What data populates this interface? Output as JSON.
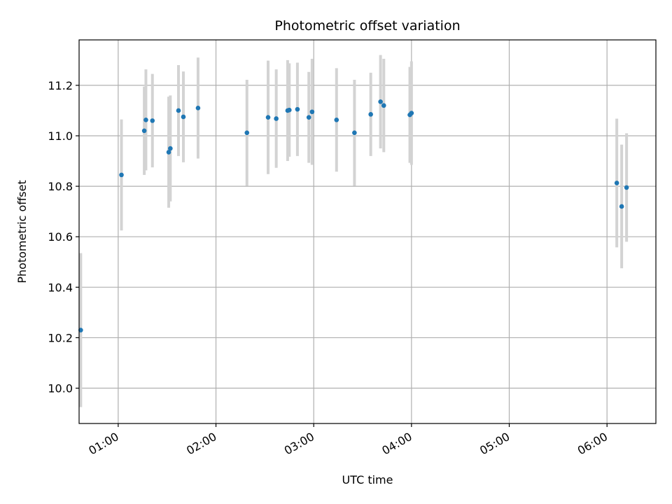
{
  "chart_data": {
    "type": "scatter",
    "title": "Photometric offset variation",
    "xlabel": "UTC time",
    "ylabel": "Photometric offset",
    "x_ticks": [
      "01:00",
      "02:00",
      "03:00",
      "04:00",
      "05:00",
      "06:00"
    ],
    "y_ticks": [
      "10.0",
      "10.2",
      "10.4",
      "10.6",
      "10.8",
      "11.0",
      "11.2"
    ],
    "xlim": [
      "00:36",
      "06:30"
    ],
    "ylim": [
      9.86,
      11.38
    ],
    "grid": true,
    "colors": {
      "point": "#1f77b4",
      "errorbar": "#d3d3d3",
      "grid": "#b0b0b0"
    },
    "series": [
      {
        "points": [
          {
            "x": "00:37",
            "y": 10.23,
            "err": 0.305
          },
          {
            "x": "01:02",
            "y": 10.845,
            "err": 0.22
          },
          {
            "x": "01:16",
            "y": 11.02,
            "err": 0.175
          },
          {
            "x": "01:17",
            "y": 11.063,
            "err": 0.2
          },
          {
            "x": "01:21",
            "y": 11.06,
            "err": 0.185
          },
          {
            "x": "01:31",
            "y": 10.935,
            "err": 0.22
          },
          {
            "x": "01:32",
            "y": 10.95,
            "err": 0.21
          },
          {
            "x": "01:37",
            "y": 11.1,
            "err": 0.18
          },
          {
            "x": "01:40",
            "y": 11.075,
            "err": 0.18
          },
          {
            "x": "01:49",
            "y": 11.11,
            "err": 0.2
          },
          {
            "x": "02:19",
            "y": 11.012,
            "err": 0.21
          },
          {
            "x": "02:32",
            "y": 11.073,
            "err": 0.225
          },
          {
            "x": "02:37",
            "y": 11.068,
            "err": 0.195
          },
          {
            "x": "02:44",
            "y": 11.1,
            "err": 0.2
          },
          {
            "x": "02:45",
            "y": 11.102,
            "err": 0.185
          },
          {
            "x": "02:50",
            "y": 11.105,
            "err": 0.185
          },
          {
            "x": "02:57",
            "y": 11.073,
            "err": 0.18
          },
          {
            "x": "02:59",
            "y": 11.095,
            "err": 0.21
          },
          {
            "x": "03:14",
            "y": 11.063,
            "err": 0.205
          },
          {
            "x": "03:25",
            "y": 11.012,
            "err": 0.21
          },
          {
            "x": "03:35",
            "y": 11.085,
            "err": 0.165
          },
          {
            "x": "03:41",
            "y": 11.135,
            "err": 0.185
          },
          {
            "x": "03:43",
            "y": 11.12,
            "err": 0.185
          },
          {
            "x": "03:59",
            "y": 11.083,
            "err": 0.19
          },
          {
            "x": "04:00",
            "y": 11.09,
            "err": 0.205
          },
          {
            "x": "06:06",
            "y": 10.813,
            "err": 0.255
          },
          {
            "x": "06:09",
            "y": 10.72,
            "err": 0.245
          },
          {
            "x": "06:12",
            "y": 10.795,
            "err": 0.215
          }
        ]
      }
    ]
  }
}
